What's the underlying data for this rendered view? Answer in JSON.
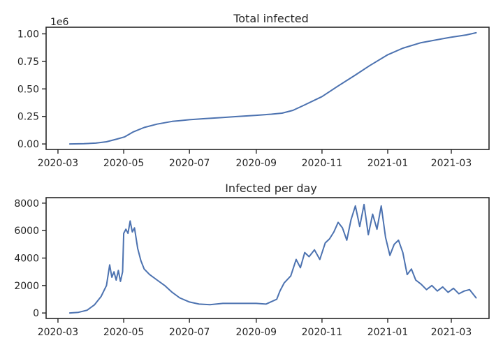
{
  "chart_data": [
    {
      "type": "line",
      "title": "Total infected",
      "xlabel": "",
      "ylabel": "",
      "y_offset_label": "1e6",
      "x_ticks": [
        "2020-03",
        "2020-05",
        "2020-07",
        "2020-09",
        "2020-11",
        "2021-01",
        "2021-03"
      ],
      "y_ticks": [
        "0.00",
        "0.25",
        "0.50",
        "0.75",
        "1.00"
      ],
      "y_tick_values": [
        0,
        0.25,
        0.5,
        0.75,
        1.0
      ],
      "xlim": [
        "2020-02-19",
        "2021-04-05"
      ],
      "ylim": [
        -0.05,
        1.06
      ],
      "grid": false,
      "series": [
        {
          "x": [
            "2020-03-12",
            "2020-03-25",
            "2020-04-05",
            "2020-04-15",
            "2020-04-25",
            "2020-05-02",
            "2020-05-10",
            "2020-05-20",
            "2020-06-01",
            "2020-06-15",
            "2020-07-01",
            "2020-07-15",
            "2020-08-01",
            "2020-08-15",
            "2020-09-01",
            "2020-09-15",
            "2020-09-25",
            "2020-10-05",
            "2020-10-15",
            "2020-11-01",
            "2020-11-15",
            "2020-12-01",
            "2020-12-15",
            "2021-01-01",
            "2021-01-15",
            "2021-02-01",
            "2021-02-15",
            "2021-03-01",
            "2021-03-15",
            "2021-03-24"
          ],
          "values": [
            0.0,
            0.002,
            0.008,
            0.02,
            0.045,
            0.065,
            0.11,
            0.15,
            0.18,
            0.205,
            0.22,
            0.23,
            0.24,
            0.25,
            0.26,
            0.27,
            0.28,
            0.305,
            0.35,
            0.43,
            0.52,
            0.62,
            0.71,
            0.81,
            0.87,
            0.92,
            0.945,
            0.97,
            0.99,
            1.01
          ]
        }
      ]
    },
    {
      "type": "line",
      "title": "Infected per day",
      "xlabel": "",
      "ylabel": "",
      "x_ticks": [
        "2020-03",
        "2020-05",
        "2020-07",
        "2020-09",
        "2020-11",
        "2021-01",
        "2021-03"
      ],
      "y_ticks": [
        "0",
        "2000",
        "4000",
        "6000",
        "8000"
      ],
      "y_tick_values": [
        0,
        2000,
        4000,
        6000,
        8000
      ],
      "xlim": [
        "2020-02-19",
        "2021-04-05"
      ],
      "ylim": [
        -400,
        8400
      ],
      "grid": false,
      "series": [
        {
          "x": [
            "2020-03-12",
            "2020-03-20",
            "2020-03-28",
            "2020-04-04",
            "2020-04-10",
            "2020-04-15",
            "2020-04-18",
            "2020-04-20",
            "2020-04-22",
            "2020-04-24",
            "2020-04-26",
            "2020-04-28",
            "2020-04-30",
            "2020-05-01",
            "2020-05-03",
            "2020-05-05",
            "2020-05-07",
            "2020-05-09",
            "2020-05-11",
            "2020-05-14",
            "2020-05-17",
            "2020-05-20",
            "2020-05-25",
            "2020-06-01",
            "2020-06-08",
            "2020-06-15",
            "2020-06-22",
            "2020-07-01",
            "2020-07-10",
            "2020-07-20",
            "2020-08-01",
            "2020-08-15",
            "2020-09-01",
            "2020-09-10",
            "2020-09-20",
            "2020-09-23",
            "2020-09-27",
            "2020-10-03",
            "2020-10-08",
            "2020-10-12",
            "2020-10-16",
            "2020-10-20",
            "2020-10-25",
            "2020-10-30",
            "2020-11-04",
            "2020-11-08",
            "2020-11-12",
            "2020-11-16",
            "2020-11-20",
            "2020-11-24",
            "2020-11-28",
            "2020-12-02",
            "2020-12-06",
            "2020-12-10",
            "2020-12-14",
            "2020-12-18",
            "2020-12-22",
            "2020-12-26",
            "2020-12-30",
            "2021-01-03",
            "2021-01-07",
            "2021-01-11",
            "2021-01-15",
            "2021-01-19",
            "2021-01-23",
            "2021-01-27",
            "2021-02-01",
            "2021-02-06",
            "2021-02-11",
            "2021-02-16",
            "2021-02-21",
            "2021-02-26",
            "2021-03-03",
            "2021-03-08",
            "2021-03-13",
            "2021-03-18",
            "2021-03-24"
          ],
          "values": [
            0,
            50,
            200,
            600,
            1200,
            2000,
            3500,
            2600,
            3000,
            2400,
            3100,
            2300,
            3000,
            5800,
            6100,
            5800,
            6700,
            5900,
            6200,
            4700,
            3800,
            3200,
            2800,
            2400,
            2000,
            1500,
            1100,
            800,
            650,
            600,
            700,
            700,
            700,
            650,
            1000,
            1600,
            2200,
            2700,
            3900,
            3300,
            4400,
            4100,
            4600,
            3900,
            5100,
            5400,
            5900,
            6600,
            6200,
            5300,
            6800,
            7800,
            6300,
            7900,
            5700,
            7200,
            6100,
            7800,
            5500,
            4200,
            5000,
            5300,
            4400,
            2800,
            3200,
            2400,
            2100,
            1700,
            2000,
            1600,
            1900,
            1500,
            1800,
            1400,
            1600,
            1700,
            1100
          ]
        }
      ]
    }
  ]
}
